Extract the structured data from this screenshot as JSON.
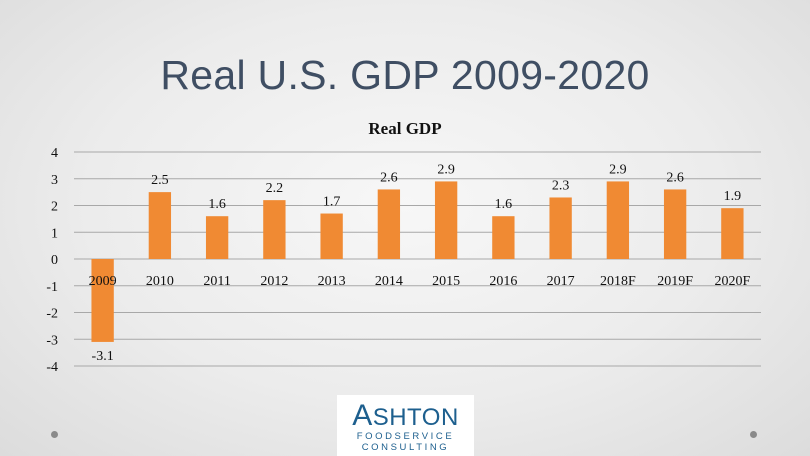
{
  "slide": {
    "title": "Real U.S. GDP 2009-2020"
  },
  "chart_data": {
    "type": "bar",
    "title": "Real GDP",
    "categories": [
      "2009",
      "2010",
      "2011",
      "2012",
      "2013",
      "2014",
      "2015",
      "2016",
      "2017",
      "2018F",
      "2019F",
      "2020F"
    ],
    "values": [
      -3.1,
      2.5,
      1.6,
      2.2,
      1.7,
      2.6,
      2.9,
      1.6,
      2.3,
      2.9,
      2.6,
      1.9
    ],
    "value_labels": [
      "-3.1",
      "2.5",
      "1.6",
      "2.2",
      "1.7",
      "2.6",
      "2.9",
      "1.6",
      "2.3",
      "2.9",
      "2.6",
      "1.9"
    ],
    "yticks": [
      "4",
      "3",
      "2",
      "1",
      "0",
      "-1",
      "-2",
      "-3",
      "-4"
    ],
    "ylim": [
      -4,
      4
    ],
    "grid": true,
    "bar_color": "#f08a33"
  },
  "logo": {
    "name_first": "A",
    "name_rest": "SHTON",
    "line1": "FOODSERVICE",
    "line2": "CONSULTING"
  }
}
